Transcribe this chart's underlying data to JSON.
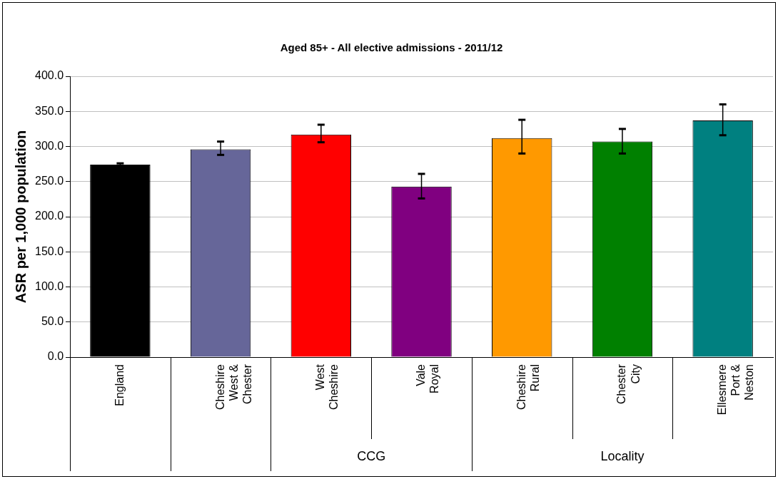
{
  "chart_data": {
    "type": "bar",
    "title": "Aged 85+ - All elective admissions - 2011/12",
    "ylabel": "ASR per 1,000 population",
    "categories": [
      "England",
      "Cheshire West & Chester",
      "West Cheshire",
      "Vale Royal",
      "Cheshire Rural",
      "Chester City",
      "Ellesmere Port & Neston"
    ],
    "values": [
      274,
      296,
      317,
      243,
      312,
      307,
      337
    ],
    "colors": [
      "#000000",
      "#666699",
      "#ff0000",
      "#800080",
      "#ff9900",
      "#008000",
      "#008080"
    ],
    "errors": [
      [
        272,
        276
      ],
      [
        288,
        307
      ],
      [
        306,
        331
      ],
      [
        226,
        261
      ],
      [
        290,
        338
      ],
      [
        290,
        325
      ],
      [
        316,
        360
      ]
    ],
    "ylim": [
      0,
      400
    ],
    "yticks": [
      {
        "value": 0,
        "label": "0.0"
      },
      {
        "value": 50,
        "label": "50.0"
      },
      {
        "value": 100,
        "label": "100.0"
      },
      {
        "value": 150,
        "label": "150.0"
      },
      {
        "value": 200,
        "label": "200.0"
      },
      {
        "value": 250,
        "label": "250.0"
      },
      {
        "value": 300,
        "label": "300.0"
      },
      {
        "value": 350,
        "label": "350.0"
      },
      {
        "value": 400,
        "label": "400.0"
      }
    ],
    "grid": "y",
    "annotations": [
      "CCG",
      "Locality"
    ]
  }
}
